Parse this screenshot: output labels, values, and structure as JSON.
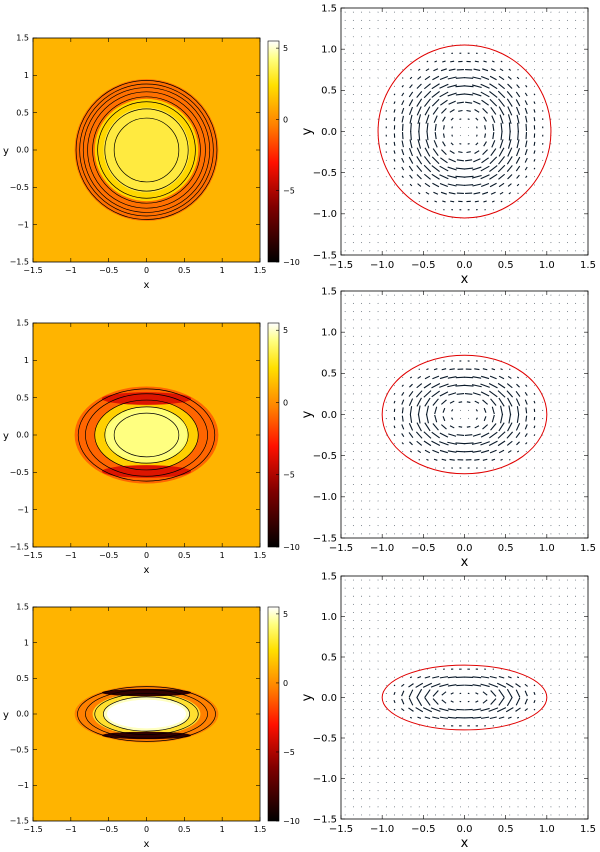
{
  "chart_data": [
    {
      "type": "heatmap",
      "row": 0,
      "xlabel": "x",
      "ylabel": "y",
      "xlim": [
        -1.5,
        1.5
      ],
      "ylim": [
        -1.5,
        1.5
      ],
      "xticks": [
        "−1.5",
        "−1",
        "−0.5",
        "0",
        "0.5",
        "1",
        "1.5"
      ],
      "yticks": [
        "−1.5",
        "−1",
        "−0.5",
        "0.0",
        "0.5",
        "1",
        "1.5"
      ],
      "colorbar": {
        "range": [
          -10,
          5.5
        ],
        "ticks": [
          "5",
          "0",
          "−5",
          "−10"
        ]
      },
      "ellipse": {
        "a": 0.95,
        "b": 0.95
      },
      "bands": [
        {
          "scale": 1.0,
          "color": "#ff7000"
        },
        {
          "scale": 0.72,
          "color": "#ffd700"
        },
        {
          "scale": 0.6,
          "color": "#ffea40"
        }
      ],
      "contour_scales": [
        0.98,
        0.93,
        0.88,
        0.82,
        0.75,
        0.68,
        0.58,
        0.45
      ],
      "dark_crescents": false,
      "center_color": "#ffee50"
    },
    {
      "type": "vector-field",
      "row": 0,
      "xlabel": "x",
      "ylabel": "y",
      "xlim": [
        -1.5,
        1.5
      ],
      "ylim": [
        -1.5,
        1.5
      ],
      "xticks": [
        "−1.5",
        "−1.0",
        "−0.5",
        "0.0",
        "0.5",
        "1.0",
        "1.5"
      ],
      "yticks": [
        "−1.5",
        "−1.0",
        "−0.5",
        "0.0",
        "0.5",
        "1.0",
        "1.5"
      ],
      "ellipse": {
        "a": 1.05,
        "b": 1.05
      }
    },
    {
      "type": "heatmap",
      "row": 1,
      "xlabel": "x",
      "ylabel": "y",
      "xlim": [
        -1.5,
        1.5
      ],
      "ylim": [
        -1.5,
        1.5
      ],
      "xticks": [
        "−1.5",
        "−1",
        "−0.5",
        "0",
        "0.5",
        "1",
        "1.5"
      ],
      "yticks": [
        "−1.5",
        "−1",
        "−0.5",
        "0.0",
        "0.5",
        "1",
        "1.5"
      ],
      "colorbar": {
        "range": [
          -10,
          5.5
        ],
        "ticks": [
          "5",
          "0",
          "−5",
          "−10"
        ]
      },
      "ellipse": {
        "a": 0.95,
        "b": 0.65
      },
      "bands": [
        {
          "scale": 1.0,
          "color": "#ff6500"
        },
        {
          "scale": 0.72,
          "color": "#ffd000"
        },
        {
          "scale": 0.58,
          "color": "#ffff70"
        }
      ],
      "contour_scales": [
        0.95,
        0.85,
        0.72,
        0.58,
        0.45
      ],
      "dark_crescents": true,
      "crescent_color": "#dd1500",
      "center_color": "#ffff80"
    },
    {
      "type": "vector-field",
      "row": 1,
      "xlabel": "x",
      "ylabel": "y",
      "xlim": [
        -1.5,
        1.5
      ],
      "ylim": [
        -1.5,
        1.5
      ],
      "xticks": [
        "−1.5",
        "−1.0",
        "−0.5",
        "0.0",
        "0.5",
        "1.0",
        "1.5"
      ],
      "yticks": [
        "−1.5",
        "−1.0",
        "−0.5",
        "0.0",
        "0.5",
        "1.0",
        "1.5"
      ],
      "ellipse": {
        "a": 1.0,
        "b": 0.72
      }
    },
    {
      "type": "heatmap",
      "row": 2,
      "xlabel": "x",
      "ylabel": "y",
      "xlim": [
        -1.5,
        1.5
      ],
      "ylim": [
        -1.5,
        1.5
      ],
      "xticks": [
        "−1.5",
        "−1",
        "−0.5",
        "0",
        "0.5",
        "1",
        "1.5"
      ],
      "yticks": [
        "−1.5",
        "−1",
        "−0.5",
        "0.0",
        "0.5",
        "1",
        "1.5"
      ],
      "colorbar": {
        "range": [
          -10,
          5.5
        ],
        "ticks": [
          "5",
          "0",
          "−5",
          "−10"
        ]
      },
      "ellipse": {
        "a": 0.95,
        "b": 0.4
      },
      "bands": [
        {
          "scale": 1.0,
          "color": "#ff8000"
        },
        {
          "scale": 0.75,
          "color": "#ffe030"
        },
        {
          "scale": 0.6,
          "color": "#ffffc0"
        },
        {
          "scale": 0.5,
          "color": "#ffffff"
        }
      ],
      "contour_scales": [
        0.96,
        0.85,
        0.72,
        0.6
      ],
      "dark_crescents": true,
      "crescent_color": "#300000",
      "center_color": "#ffffff"
    },
    {
      "type": "vector-field",
      "row": 2,
      "xlabel": "x",
      "ylabel": "y",
      "xlim": [
        -1.5,
        1.5
      ],
      "ylim": [
        -1.5,
        1.5
      ],
      "xticks": [
        "−1.5",
        "−1.0",
        "−0.5",
        "0.0",
        "0.5",
        "1.0",
        "1.5"
      ],
      "yticks": [
        "−1.5",
        "−1.0",
        "−0.5",
        "0.0",
        "0.5",
        "1.0",
        "1.5"
      ],
      "ellipse": {
        "a": 1.0,
        "b": 0.4
      }
    }
  ],
  "colors": {
    "background": "#ffb400",
    "ellipse": "#e00000",
    "arrows": "#0a1a2a",
    "contour": "#000000"
  }
}
